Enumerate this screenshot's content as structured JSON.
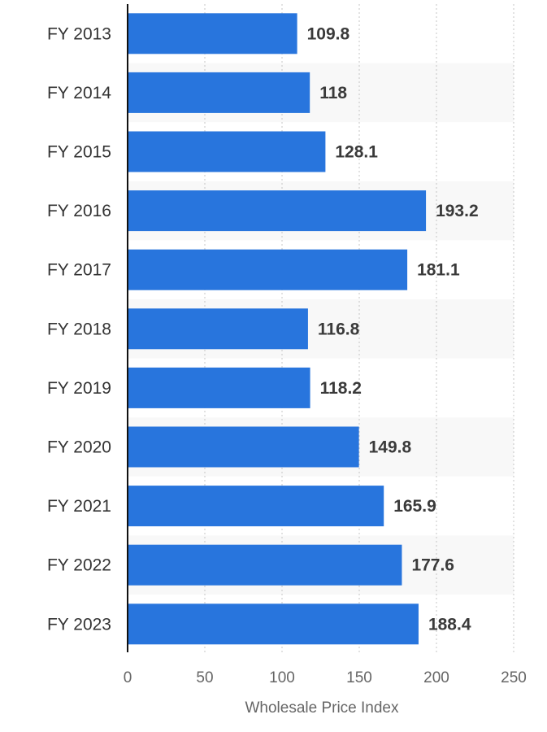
{
  "chart_data": {
    "type": "bar",
    "orientation": "horizontal",
    "categories": [
      "FY 2013",
      "FY 2014",
      "FY 2015",
      "FY 2016",
      "FY 2017",
      "FY 2018",
      "FY 2019",
      "FY 2020",
      "FY 2021",
      "FY 2022",
      "FY 2023"
    ],
    "values": [
      109.8,
      118,
      128.1,
      193.2,
      181.1,
      116.8,
      118.2,
      149.8,
      165.9,
      177.6,
      188.4
    ],
    "value_labels": [
      "109.8",
      "118",
      "128.1",
      "193.2",
      "181.1",
      "116.8",
      "118.2",
      "149.8",
      "165.9",
      "177.6",
      "188.4"
    ],
    "xlabel": "Wholesale Price Index",
    "ylabel": "",
    "xlim": [
      0,
      250
    ],
    "x_ticks": [
      "0",
      "50",
      "100",
      "150",
      "200",
      "250"
    ],
    "grid": true,
    "bar_color": "#2875dd",
    "alt_row_color": "#f8f8f8"
  }
}
